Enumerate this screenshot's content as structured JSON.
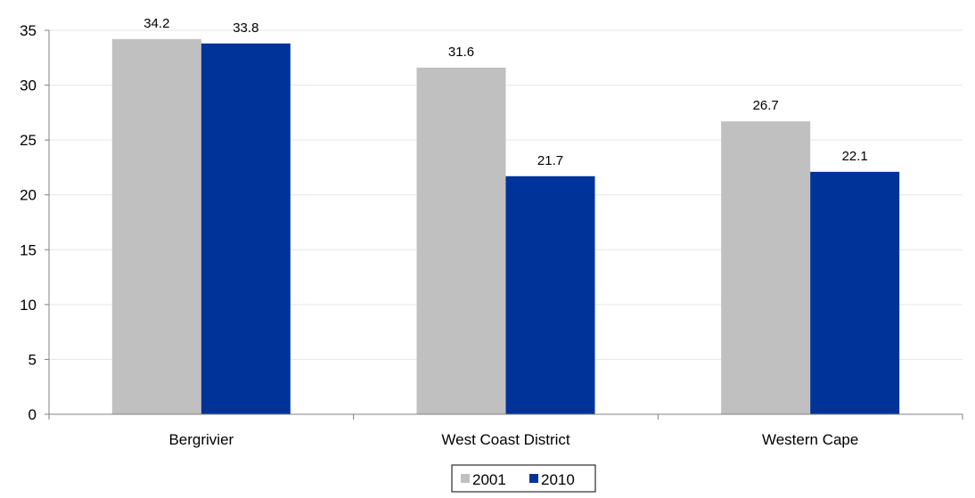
{
  "chart_data": {
    "type": "bar",
    "title": "",
    "xlabel": "",
    "ylabel": "",
    "categories": [
      "Bergrivier",
      "West Coast District",
      "Western Cape"
    ],
    "series": [
      {
        "name": "2001",
        "values": [
          34.2,
          31.6,
          26.7
        ],
        "color": "#c0c0c0"
      },
      {
        "name": "2010",
        "values": [
          33.8,
          21.7,
          22.1
        ],
        "color": "#003399"
      }
    ],
    "ylim": [
      0,
      35
    ],
    "yticks": [
      0,
      5,
      10,
      15,
      20,
      25,
      30,
      35
    ],
    "grid": true,
    "legend": "bottom-center",
    "data_labels": true
  }
}
